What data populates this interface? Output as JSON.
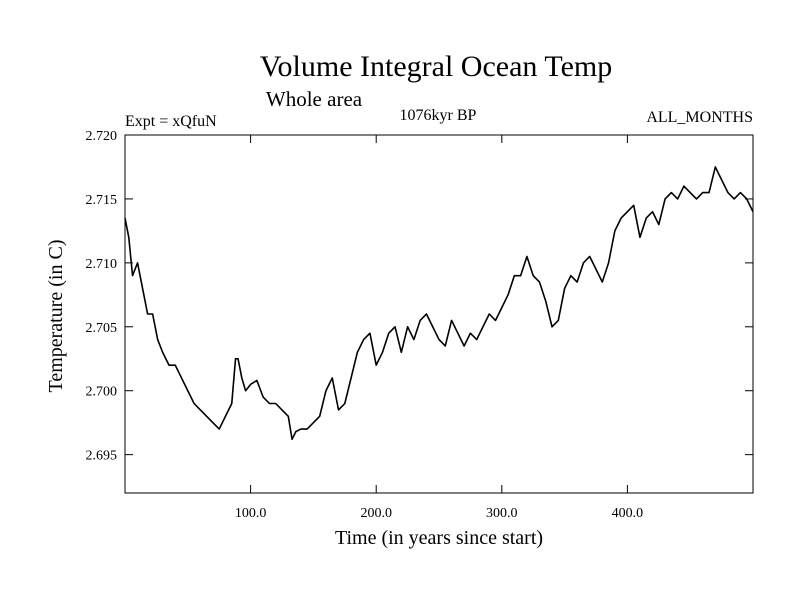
{
  "chart_data": {
    "type": "line",
    "title": "Volume Integral Ocean Temp",
    "subtitle": "Whole area",
    "annotations": {
      "left": "Expt = xQfuN",
      "center": "1076kyr BP",
      "right": "ALL_MONTHS"
    },
    "xlabel": "Time (in years since start)",
    "ylabel": "Temperature (in C)",
    "xlim": [
      0,
      500
    ],
    "ylim": [
      2.692,
      2.72
    ],
    "xticks": [
      100,
      200,
      300,
      400
    ],
    "xtick_labels": [
      "100.0",
      "200.0",
      "300.0",
      "400.0"
    ],
    "yticks": [
      2.695,
      2.7,
      2.705,
      2.71,
      2.715,
      2.72
    ],
    "ytick_labels": [
      "2.695",
      "2.700",
      "2.705",
      "2.710",
      "2.715",
      "2.720"
    ],
    "grid": false,
    "series": [
      {
        "name": "Volume Integral Ocean Temp",
        "color": "#000000",
        "x": [
          0,
          3,
          6,
          10,
          14,
          18,
          22,
          26,
          30,
          35,
          40,
          45,
          50,
          55,
          60,
          65,
          70,
          75,
          80,
          85,
          88,
          90,
          93,
          96,
          100,
          105,
          110,
          115,
          120,
          125,
          130,
          133,
          136,
          140,
          145,
          150,
          155,
          160,
          165,
          170,
          175,
          180,
          185,
          190,
          195,
          200,
          205,
          210,
          215,
          220,
          225,
          230,
          235,
          240,
          245,
          250,
          255,
          260,
          265,
          270,
          275,
          280,
          285,
          290,
          295,
          300,
          305,
          310,
          315,
          320,
          325,
          330,
          335,
          340,
          345,
          350,
          355,
          360,
          365,
          370,
          375,
          380,
          385,
          390,
          395,
          400,
          405,
          410,
          415,
          420,
          425,
          430,
          435,
          440,
          445,
          450,
          455,
          460,
          465,
          470,
          475,
          480,
          485,
          490,
          495,
          500
        ],
        "y": [
          2.7135,
          2.712,
          2.709,
          2.71,
          2.708,
          2.706,
          2.706,
          2.704,
          2.703,
          2.702,
          2.702,
          2.701,
          2.7,
          2.699,
          2.6985,
          2.698,
          2.6975,
          2.697,
          2.698,
          2.699,
          2.7025,
          2.7025,
          2.701,
          2.7,
          2.7005,
          2.7008,
          2.6995,
          2.699,
          2.699,
          2.6985,
          2.698,
          2.6962,
          2.6968,
          2.697,
          2.697,
          2.6975,
          2.698,
          2.7,
          2.701,
          2.6985,
          2.699,
          2.701,
          2.703,
          2.704,
          2.7045,
          2.702,
          2.703,
          2.7045,
          2.705,
          2.703,
          2.705,
          2.704,
          2.7055,
          2.706,
          2.705,
          2.704,
          2.7035,
          2.7055,
          2.7045,
          2.7035,
          2.7045,
          2.704,
          2.705,
          2.706,
          2.7055,
          2.7065,
          2.7075,
          2.709,
          2.709,
          2.7105,
          2.709,
          2.7085,
          2.707,
          2.705,
          2.7055,
          2.708,
          2.709,
          2.7085,
          2.71,
          2.7105,
          2.7095,
          2.7085,
          2.71,
          2.7125,
          2.7135,
          2.714,
          2.7145,
          2.712,
          2.7135,
          2.714,
          2.713,
          2.715,
          2.7155,
          2.715,
          2.716,
          2.7155,
          2.715,
          2.7155,
          2.7155,
          2.7175,
          2.7165,
          2.7155,
          2.715,
          2.7155,
          2.715,
          2.714
        ]
      }
    ]
  }
}
